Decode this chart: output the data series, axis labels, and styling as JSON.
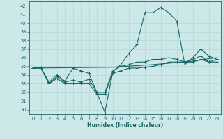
{
  "xlabel": "Humidex (Indice chaleur)",
  "xlim": [
    -0.5,
    23.5
  ],
  "ylim": [
    29.5,
    42.5
  ],
  "xticks": [
    0,
    1,
    2,
    3,
    4,
    5,
    6,
    7,
    8,
    9,
    10,
    11,
    12,
    13,
    14,
    15,
    16,
    17,
    18,
    19,
    20,
    21,
    22,
    23
  ],
  "yticks": [
    30,
    31,
    32,
    33,
    34,
    35,
    36,
    37,
    38,
    39,
    40,
    41,
    42
  ],
  "bg_color": "#cce8e8",
  "line_color": "#1a6666",
  "grid_color": "#b5d8d8",
  "series": [
    {
      "x": [
        0,
        1,
        2,
        3,
        4,
        5,
        6,
        7,
        9,
        10,
        11,
        12,
        13,
        14,
        15,
        16,
        17,
        18,
        19,
        20,
        21,
        22,
        23
      ],
      "y": [
        34.8,
        34.8,
        33.2,
        34.0,
        33.3,
        34.8,
        34.5,
        34.2,
        29.7,
        34.4,
        35.2,
        36.5,
        37.5,
        41.2,
        41.2,
        41.8,
        41.2,
        40.2,
        35.2,
        36.0,
        37.0,
        36.2,
        35.8
      ],
      "marker": true
    },
    {
      "x": [
        0,
        1,
        2,
        3,
        4,
        5,
        6,
        7,
        8,
        9,
        10,
        11,
        12,
        13,
        14,
        15,
        16,
        17,
        18,
        19,
        20,
        21,
        22,
        23
      ],
      "y": [
        34.8,
        34.9,
        33.0,
        33.8,
        33.2,
        33.4,
        33.2,
        33.5,
        32.0,
        32.0,
        34.5,
        35.0,
        35.2,
        35.5,
        35.5,
        35.8,
        35.8,
        36.0,
        35.8,
        35.5,
        35.8,
        36.2,
        35.5,
        35.8
      ],
      "marker": true
    },
    {
      "x": [
        0,
        1,
        2,
        3,
        4,
        5,
        6,
        7,
        8,
        9,
        10,
        11,
        12,
        13,
        14,
        15,
        16,
        17,
        18,
        19,
        20,
        21,
        22,
        23
      ],
      "y": [
        34.8,
        34.8,
        33.0,
        33.6,
        33.0,
        33.0,
        33.0,
        33.0,
        31.8,
        31.8,
        34.2,
        34.5,
        34.8,
        34.8,
        34.9,
        35.0,
        35.2,
        35.5,
        35.5,
        35.5,
        35.5,
        35.8,
        35.5,
        35.5
      ],
      "marker": true
    },
    {
      "x": [
        0,
        10,
        15,
        20,
        23
      ],
      "y": [
        34.8,
        34.9,
        35.2,
        35.6,
        36.0
      ],
      "marker": false
    }
  ]
}
